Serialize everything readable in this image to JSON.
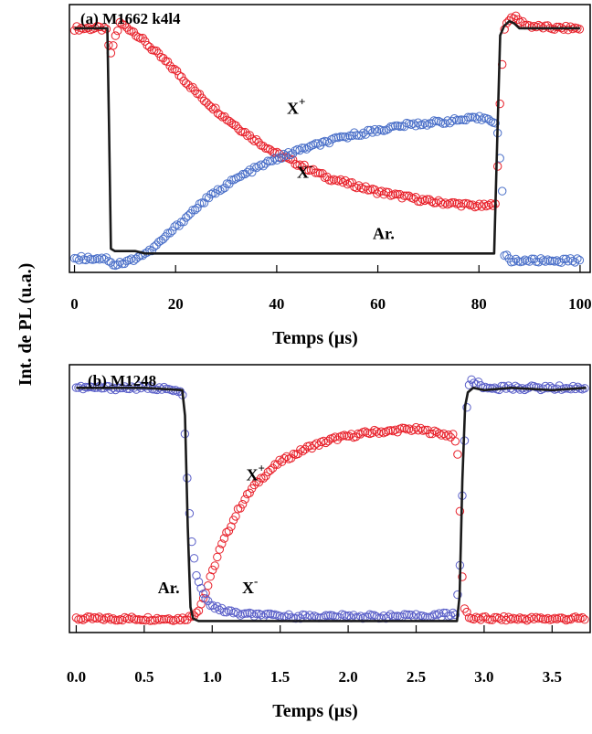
{
  "ylabel": "Int. de PL (u.a.)",
  "colors": {
    "xplus": "#e8202a",
    "xminus": "#4a6fc8",
    "xminus_b": "#5a5fc8",
    "ar": "#1a1a1a"
  },
  "chart_data": [
    {
      "type": "line",
      "title": "(a) M1662 k4l4",
      "xlabel": "Temps (µs)",
      "xlim": [
        -1,
        102
      ],
      "ylim": [
        -0.05,
        1.08
      ],
      "xticks": [
        "0",
        "20",
        "40",
        "60",
        "80",
        "100"
      ],
      "grid": false,
      "series": [
        {
          "name": "X+",
          "label_main": "X",
          "label_sup": "+",
          "marker": "circle",
          "x": [
            0,
            3,
            5,
            6.5,
            7,
            8,
            9,
            10,
            12,
            15,
            20,
            25,
            30,
            35,
            40,
            45,
            50,
            55,
            60,
            65,
            70,
            75,
            80,
            82,
            83.5,
            84,
            85,
            86,
            87,
            88,
            90,
            95,
            100
          ],
          "y": [
            0.98,
            0.98,
            0.98,
            0.97,
            0.85,
            0.94,
            1.0,
            0.99,
            0.96,
            0.9,
            0.8,
            0.69,
            0.6,
            0.52,
            0.45,
            0.4,
            0.35,
            0.32,
            0.29,
            0.27,
            0.25,
            0.24,
            0.23,
            0.23,
            0.25,
            0.6,
            0.98,
            1.02,
            1.03,
            1.01,
            0.99,
            0.98,
            0.98
          ]
        },
        {
          "name": "X-",
          "label_main": "X",
          "label_sup": "-",
          "marker": "circle",
          "x": [
            0,
            3,
            6,
            7,
            8,
            9,
            10,
            12,
            15,
            20,
            25,
            30,
            35,
            40,
            45,
            50,
            55,
            60,
            65,
            70,
            75,
            80,
            82,
            83.5,
            84.5,
            85,
            86,
            88,
            90,
            95,
            100
          ],
          "y": [
            0.01,
            0.01,
            0.01,
            0.0,
            -0.02,
            -0.01,
            -0.01,
            0.01,
            0.04,
            0.14,
            0.24,
            0.32,
            0.38,
            0.43,
            0.47,
            0.5,
            0.53,
            0.55,
            0.57,
            0.58,
            0.59,
            0.6,
            0.6,
            0.58,
            0.35,
            0.03,
            0.0,
            0.0,
            0.0,
            0.0,
            0.0
          ]
        },
        {
          "name": "Ar.",
          "marker": "none",
          "x": [
            0,
            3,
            5.5,
            6.5,
            6.8,
            7.2,
            8,
            10,
            12,
            14,
            16,
            20,
            40,
            60,
            80,
            83,
            83.6,
            84.2,
            85,
            86,
            87,
            88,
            90,
            95,
            100
          ],
          "y": [
            0.98,
            0.98,
            0.98,
            0.98,
            0.6,
            0.05,
            0.04,
            0.04,
            0.04,
            0.03,
            0.03,
            0.03,
            0.03,
            0.03,
            0.03,
            0.03,
            0.5,
            0.95,
            0.99,
            1.01,
            1.0,
            0.98,
            0.98,
            0.98,
            0.98
          ]
        }
      ],
      "annotations": [
        {
          "text_main": "X",
          "text_sup": "+",
          "x": 42,
          "y": 0.62
        },
        {
          "text_main": "X",
          "text_sup": "-",
          "x": 44,
          "y": 0.35
        },
        {
          "text": "Ar.",
          "x": 59,
          "y": 0.09
        }
      ]
    },
    {
      "type": "line",
      "title": "(b) M1248",
      "xlabel": "Temps (µs)",
      "xlim": [
        -0.05,
        3.78
      ],
      "ylim": [
        -0.06,
        1.1
      ],
      "xticks": [
        "0.0",
        "0.5",
        "1.0",
        "1.5",
        "2.0",
        "2.5",
        "3.0",
        "3.5"
      ],
      "grid": false,
      "series": [
        {
          "name": "X+",
          "label_main": "X",
          "label_sup": "+",
          "marker": "circle",
          "x": [
            0,
            0.5,
            0.8,
            0.85,
            0.9,
            0.95,
            1.0,
            1.05,
            1.1,
            1.2,
            1.3,
            1.4,
            1.5,
            1.6,
            1.7,
            1.8,
            1.9,
            2.0,
            2.1,
            2.2,
            2.3,
            2.4,
            2.5,
            2.6,
            2.7,
            2.78,
            2.81,
            2.83,
            2.85,
            2.9,
            3.0,
            3.5,
            3.75
          ],
          "y": [
            0.0,
            0.0,
            0.0,
            0.01,
            0.04,
            0.11,
            0.2,
            0.29,
            0.36,
            0.48,
            0.57,
            0.63,
            0.68,
            0.71,
            0.74,
            0.76,
            0.78,
            0.79,
            0.8,
            0.81,
            0.81,
            0.82,
            0.82,
            0.81,
            0.8,
            0.79,
            0.7,
            0.3,
            0.05,
            0.0,
            0.0,
            0.0,
            0.0
          ]
        },
        {
          "name": "X-",
          "label_main": "X",
          "label_sup": "-",
          "marker": "circle",
          "x": [
            0,
            0.3,
            0.6,
            0.78,
            0.8,
            0.82,
            0.85,
            0.88,
            0.92,
            0.97,
            1.05,
            1.2,
            1.5,
            2.0,
            2.5,
            2.79,
            2.82,
            2.85,
            2.88,
            2.9,
            2.95,
            3.0,
            3.2,
            3.5,
            3.75
          ],
          "y": [
            1.0,
            1.0,
            1.0,
            0.98,
            0.8,
            0.55,
            0.33,
            0.2,
            0.12,
            0.07,
            0.04,
            0.02,
            0.01,
            0.01,
            0.01,
            0.02,
            0.2,
            0.72,
            0.98,
            1.03,
            1.02,
            1.0,
            1.0,
            1.0,
            1.0
          ]
        },
        {
          "name": "Ar.",
          "marker": "none",
          "x": [
            0,
            0.5,
            0.78,
            0.8,
            0.82,
            0.84,
            0.86,
            0.9,
            1.0,
            1.5,
            2.0,
            2.5,
            2.8,
            2.82,
            2.84,
            2.86,
            2.88,
            2.92,
            3.0,
            3.2,
            3.5,
            3.75
          ],
          "y": [
            1.0,
            1.0,
            0.99,
            0.88,
            0.4,
            0.05,
            0.0,
            -0.01,
            -0.01,
            -0.01,
            -0.01,
            -0.01,
            -0.01,
            0.1,
            0.6,
            0.92,
            0.98,
            1.0,
            0.99,
            1.0,
            0.99,
            1.0
          ]
        }
      ],
      "annotations": [
        {
          "text_main": "X",
          "text_sup": "+",
          "x": 1.25,
          "y": 0.6
        },
        {
          "text_main": "X",
          "text_sup": "-",
          "x": 1.22,
          "y": 0.11
        },
        {
          "text": "Ar.",
          "x": 0.6,
          "y": 0.11
        }
      ]
    }
  ]
}
